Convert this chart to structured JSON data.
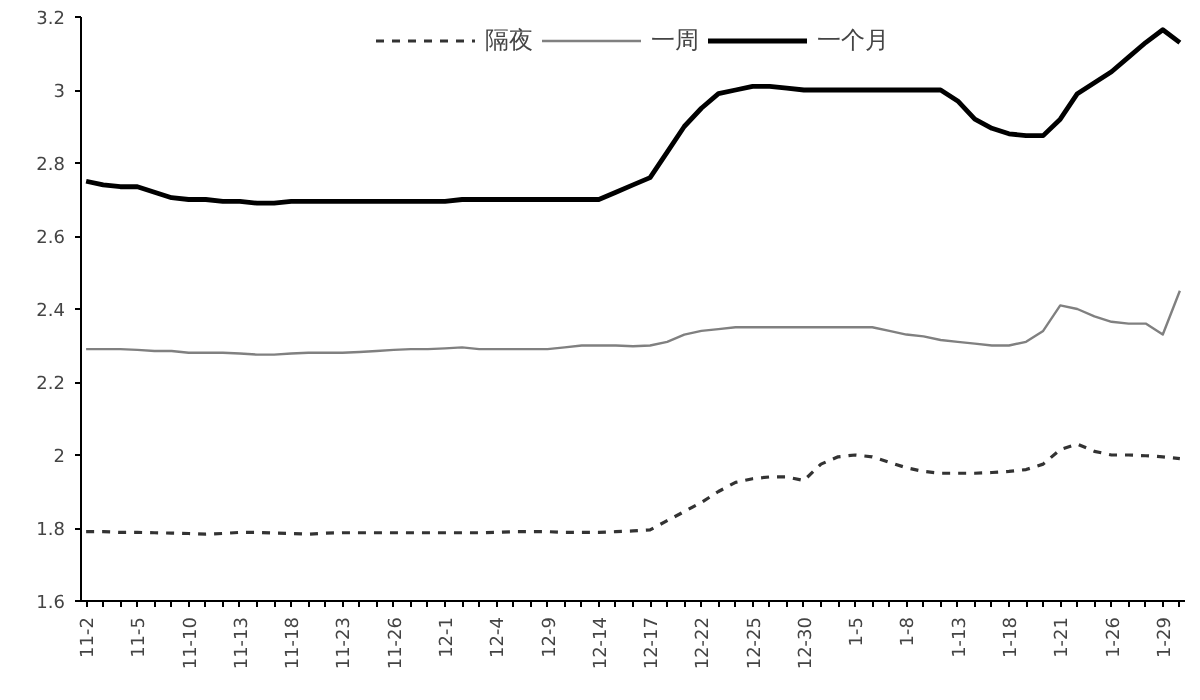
{
  "chart_data": {
    "type": "line",
    "categories": [
      "11-2",
      null,
      null,
      "11-5",
      null,
      null,
      "11-10",
      null,
      null,
      "11-13",
      null,
      null,
      "11-18",
      null,
      null,
      "11-23",
      null,
      null,
      "11-26",
      null,
      null,
      "12-1",
      null,
      null,
      "12-4",
      null,
      null,
      "12-9",
      null,
      null,
      "12-14",
      null,
      null,
      "12-17",
      null,
      null,
      "12-22",
      null,
      null,
      "12-25",
      null,
      null,
      "12-30",
      null,
      null,
      "1-5",
      null,
      null,
      "1-8",
      null,
      null,
      "1-13",
      null,
      null,
      "1-18",
      null,
      null,
      "1-21",
      null,
      null,
      "1-26",
      null,
      null,
      "1-29",
      null
    ],
    "series": [
      {
        "name": "隔夜",
        "color": "#333333",
        "line_style": "dashed",
        "values": [
          1.79,
          1.79,
          1.788,
          1.788,
          1.787,
          1.786,
          1.785,
          1.783,
          1.785,
          1.788,
          1.788,
          1.786,
          1.785,
          1.783,
          1.786,
          1.787,
          1.787,
          1.787,
          1.787,
          1.787,
          1.787,
          1.787,
          1.787,
          1.787,
          1.788,
          1.79,
          1.79,
          1.79,
          1.788,
          1.788,
          1.788,
          1.79,
          1.792,
          1.795,
          1.82,
          1.845,
          1.87,
          1.9,
          1.925,
          1.935,
          1.94,
          1.94,
          1.93,
          1.975,
          1.995,
          2.0,
          1.995,
          1.98,
          1.965,
          1.955,
          1.95,
          1.95,
          1.95,
          1.952,
          1.955,
          1.96,
          1.975,
          2.015,
          2.03,
          2.01,
          2.0,
          2.0,
          1.998,
          1.995,
          1.99
        ]
      },
      {
        "name": "一周",
        "color": "#808080",
        "line_style": "solid",
        "values": [
          2.29,
          2.29,
          2.29,
          2.288,
          2.285,
          2.285,
          2.28,
          2.28,
          2.28,
          2.278,
          2.275,
          2.275,
          2.278,
          2.28,
          2.28,
          2.28,
          2.282,
          2.285,
          2.288,
          2.29,
          2.29,
          2.292,
          2.295,
          2.29,
          2.29,
          2.29,
          2.29,
          2.29,
          2.295,
          2.3,
          2.3,
          2.3,
          2.298,
          2.3,
          2.31,
          2.33,
          2.34,
          2.345,
          2.35,
          2.35,
          2.35,
          2.35,
          2.35,
          2.35,
          2.35,
          2.35,
          2.35,
          2.34,
          2.33,
          2.325,
          2.315,
          2.31,
          2.305,
          2.3,
          2.3,
          2.31,
          2.34,
          2.41,
          2.4,
          2.38,
          2.365,
          2.36,
          2.36,
          2.33,
          2.45
        ]
      },
      {
        "name": "一个月",
        "color": "#000000",
        "line_style": "solid",
        "values": [
          2.75,
          2.74,
          2.735,
          2.735,
          2.72,
          2.705,
          2.7,
          2.7,
          2.695,
          2.695,
          2.69,
          2.69,
          2.695,
          2.695,
          2.695,
          2.695,
          2.695,
          2.695,
          2.695,
          2.695,
          2.695,
          2.695,
          2.7,
          2.7,
          2.7,
          2.7,
          2.7,
          2.7,
          2.7,
          2.7,
          2.7,
          2.72,
          2.74,
          2.76,
          2.83,
          2.9,
          2.95,
          2.99,
          3.0,
          3.01,
          3.01,
          3.005,
          3.0,
          3.0,
          3.0,
          3.0,
          3.0,
          3.0,
          3.0,
          3.0,
          3.0,
          2.97,
          2.92,
          2.895,
          2.88,
          2.875,
          2.875,
          2.92,
          2.99,
          3.02,
          3.05,
          3.09,
          3.13,
          3.165,
          3.13
        ]
      }
    ],
    "ylim": [
      1.6,
      3.2
    ],
    "yticks": [
      1.6,
      1.8,
      2,
      2.2,
      2.4,
      2.6,
      2.8,
      3,
      3.2
    ],
    "grid": false,
    "legend": "top",
    "marker": "none"
  }
}
